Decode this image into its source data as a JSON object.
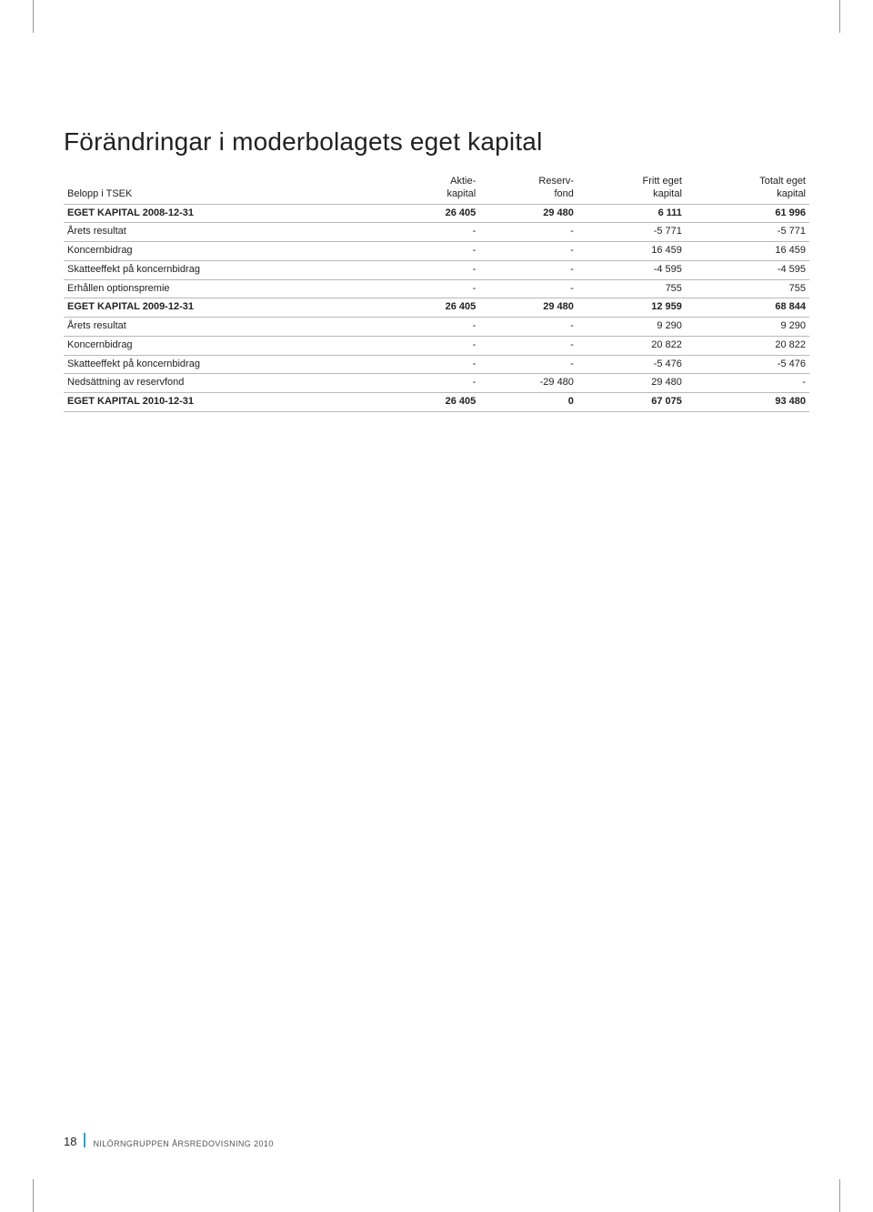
{
  "page": {
    "title": "Förändringar i moderbolagets eget kapital",
    "number": "18",
    "publication": "NILÖRNGRUPPEN ÅRSREDOVISNING 2010"
  },
  "table": {
    "header_top": [
      "",
      "Aktie-",
      "Reserv-",
      "Fritt eget",
      "Totalt eget"
    ],
    "header_bot": [
      "Belopp i TSEK",
      "kapital",
      "fond",
      "kapital",
      "kapital"
    ],
    "rows": [
      {
        "bold": true,
        "cells": [
          "EGET KAPITAL 2008-12-31",
          "26 405",
          "29 480",
          "6 111",
          "61 996"
        ]
      },
      {
        "bold": false,
        "cells": [
          "Årets resultat",
          "-",
          "-",
          "-5 771",
          "-5 771"
        ]
      },
      {
        "bold": false,
        "cells": [
          "Koncernbidrag",
          "-",
          "-",
          "16 459",
          "16 459"
        ]
      },
      {
        "bold": false,
        "cells": [
          "Skatteeffekt på koncernbidrag",
          "-",
          "-",
          "-4 595",
          "-4 595"
        ]
      },
      {
        "bold": false,
        "cells": [
          "Erhållen optionspremie",
          "-",
          "-",
          "755",
          "755"
        ]
      },
      {
        "bold": true,
        "cells": [
          "EGET KAPITAL 2009-12-31",
          "26 405",
          "29 480",
          "12 959",
          "68 844"
        ]
      },
      {
        "bold": false,
        "cells": [
          "Årets resultat",
          "-",
          "-",
          "9 290",
          "9 290"
        ]
      },
      {
        "bold": false,
        "cells": [
          "Koncernbidrag",
          "-",
          "-",
          "20 822",
          "20 822"
        ]
      },
      {
        "bold": false,
        "cells": [
          "Skatteeffekt på koncernbidrag",
          "-",
          "-",
          "-5 476",
          "-5 476"
        ]
      },
      {
        "bold": false,
        "cells": [
          "Nedsättning av reservfond",
          "-",
          "-29 480",
          "29 480",
          "-"
        ]
      },
      {
        "bold": true,
        "cells": [
          "EGET KAPITAL 2010-12-31",
          "26 405",
          "0",
          "67 075",
          "93 480"
        ]
      }
    ],
    "colors": {
      "rule": "#b8b8b8",
      "text": "#222222",
      "accent": "#2aa3c9",
      "background": "#ffffff"
    },
    "font_sizes": {
      "title": 28,
      "body": 11,
      "footer_num": 13,
      "footer_pub": 9
    }
  }
}
